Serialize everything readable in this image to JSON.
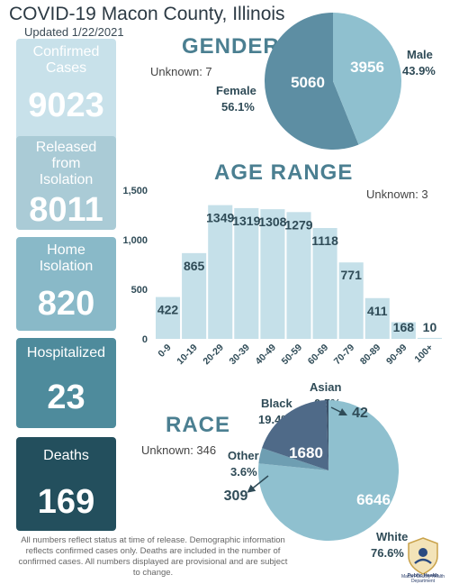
{
  "header": {
    "title": "COVID-19 Macon County, Illinois",
    "updated": "Updated 1/22/2021"
  },
  "stats": {
    "confirmed": {
      "label": "Confirmed Cases",
      "value": "9023"
    },
    "released": {
      "label_lines": [
        "Released",
        "from",
        "Isolation"
      ],
      "value": "8011"
    },
    "home": {
      "label_lines": [
        "Home",
        "Isolation"
      ],
      "value": "820"
    },
    "hospitalized": {
      "label": "Hospitalized",
      "value": "23"
    },
    "deaths": {
      "label": "Deaths",
      "value": "169"
    }
  },
  "gender": {
    "title": "GENDER",
    "unknown": "Unknown: 7",
    "female_label": "Female",
    "female_pct": "56.1%",
    "male_label": "Male",
    "male_pct": "43.9%"
  },
  "age": {
    "title": "AGE RANGE",
    "unknown": "Unknown: 3"
  },
  "race": {
    "title": "RACE",
    "unknown": "Unknown: 346",
    "black_label": "Black",
    "black_pct": "19.4%",
    "asian_label": "Asian",
    "asian_pct": "0.5%",
    "other_label": "Other",
    "other_pct": "3.6%",
    "white_label": "White",
    "white_pct": "76.6%"
  },
  "footnote": "All numbers reflect status at time of release. Demographic information reflects confirmed cases only. Deaths are included in the number of confirmed cases. All numbers displayed are provisional and are subject to change.",
  "logo": {
    "line1": "Public Health",
    "line2": "Macon County",
    "line3": "Health Department"
  },
  "chart_data": [
    {
      "type": "pie",
      "title": "GENDER",
      "categories": [
        "Female",
        "Male"
      ],
      "values": [
        5060,
        3956
      ],
      "percent_labels": [
        "56.1%",
        "43.9%"
      ],
      "colors": [
        "#5d8ea3",
        "#8fc0cf"
      ]
    },
    {
      "type": "bar",
      "title": "AGE RANGE",
      "categories": [
        "0-9",
        "10-19",
        "20-29",
        "30-39",
        "40-49",
        "50-59",
        "60-69",
        "70-79",
        "80-89",
        "90-99",
        "100+"
      ],
      "values": [
        422,
        865,
        1349,
        1319,
        1308,
        1279,
        1118,
        771,
        411,
        168,
        10
      ],
      "yticks": [
        "0",
        "500",
        "1,000",
        "1,500"
      ],
      "ylim": [
        0,
        1500
      ],
      "grid": false,
      "color": "#c5e0e9"
    },
    {
      "type": "pie",
      "title": "RACE",
      "categories": [
        "White",
        "Black",
        "Other",
        "Asian"
      ],
      "values": [
        6646,
        1680,
        309,
        42
      ],
      "percent_labels": [
        "76.6%",
        "19.4%",
        "3.6%",
        "0.5%"
      ],
      "colors": [
        "#8fc0cf",
        "#4f6a88",
        "#6e9eb2",
        "#3a5068"
      ]
    }
  ]
}
